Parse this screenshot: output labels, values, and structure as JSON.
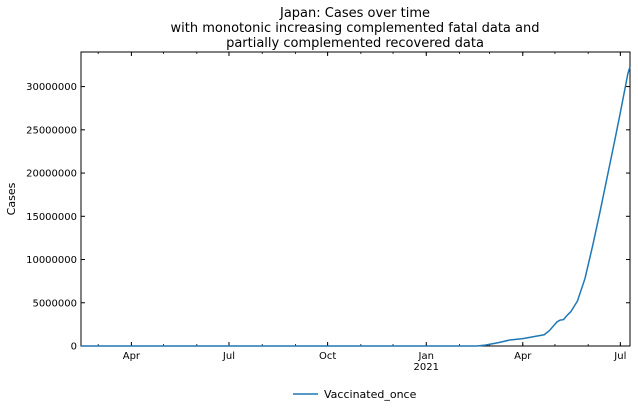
{
  "chart_data": {
    "type": "line",
    "title_lines": [
      "Japan: Cases over time",
      "with monotonic increasing complemented fatal data and",
      "partially complemented recovered data"
    ],
    "xlabel": "",
    "ylabel": "Cases",
    "x_range": [
      "2020-02-14",
      "2021-07-10"
    ],
    "ylim": [
      0,
      34000000
    ],
    "x_ticks": [
      {
        "date": "2020-04-01",
        "label": "Apr",
        "sublabel": ""
      },
      {
        "date": "2020-07-01",
        "label": "Jul",
        "sublabel": ""
      },
      {
        "date": "2020-10-01",
        "label": "Oct",
        "sublabel": ""
      },
      {
        "date": "2021-01-01",
        "label": "Jan",
        "sublabel": "2021"
      },
      {
        "date": "2021-04-01",
        "label": "Apr",
        "sublabel": ""
      },
      {
        "date": "2021-07-01",
        "label": "Jul",
        "sublabel": ""
      }
    ],
    "y_ticks": [
      0,
      5000000,
      10000000,
      15000000,
      20000000,
      25000000,
      30000000
    ],
    "grid": false,
    "legend_position": "bottom-center",
    "series": [
      {
        "name": "Vaccinated_once",
        "color": "#1f77b4",
        "points": [
          [
            "2020-02-14",
            0
          ],
          [
            "2021-02-17",
            0
          ],
          [
            "2021-02-25",
            100000
          ],
          [
            "2021-03-10",
            400000
          ],
          [
            "2021-03-20",
            700000
          ],
          [
            "2021-04-01",
            850000
          ],
          [
            "2021-04-12",
            1100000
          ],
          [
            "2021-04-21",
            1300000
          ],
          [
            "2021-04-26",
            1800000
          ],
          [
            "2021-05-03",
            2800000
          ],
          [
            "2021-05-06",
            3000000
          ],
          [
            "2021-05-09",
            3050000
          ],
          [
            "2021-05-12",
            3500000
          ],
          [
            "2021-05-16",
            4000000
          ],
          [
            "2021-05-22",
            5200000
          ],
          [
            "2021-05-29",
            7800000
          ],
          [
            "2021-06-05",
            11500000
          ],
          [
            "2021-06-12",
            15500000
          ],
          [
            "2021-06-19",
            19700000
          ],
          [
            "2021-06-25",
            23300000
          ],
          [
            "2021-07-01",
            27000000
          ],
          [
            "2021-07-06",
            30200000
          ],
          [
            "2021-07-08",
            31500000
          ],
          [
            "2021-07-10",
            32300000
          ]
        ]
      }
    ]
  }
}
